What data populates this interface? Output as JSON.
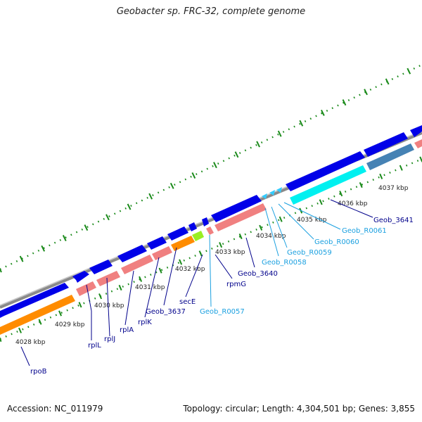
{
  "title": "Geobacter sp. FRC-32, complete genome",
  "footer": {
    "accession": "Accession: NC_011979",
    "summary": "Topology: circular; Length: 4,304,501 bp; Genes: 3,855"
  },
  "colors": {
    "backbone": "#8a8a8a",
    "forward_cds": "#0000e8",
    "reverse_cds": "#f08080",
    "rrna": "#ff8c00",
    "trna": "#33ccff",
    "misc": "#4682b4",
    "cyan_feature": "#00f0f0",
    "lime_feature": "#99ee22",
    "tick": "#1a8a1a",
    "label_cds": "#00008b",
    "label_rna": "#1aa0e0"
  },
  "ticks": [
    "4028 kbp",
    "4029 kbp",
    "4030 kbp",
    "4031 kbp",
    "4032 kbp",
    "4033 kbp",
    "4034 kbp",
    "4035 kbp",
    "4036 kbp",
    "4037 kbp"
  ],
  "labels": [
    {
      "text": "rpoB",
      "kind": "cds"
    },
    {
      "text": "rplL",
      "kind": "cds"
    },
    {
      "text": "rplJ",
      "kind": "cds"
    },
    {
      "text": "rplA",
      "kind": "cds"
    },
    {
      "text": "rplK",
      "kind": "cds"
    },
    {
      "text": "Geob_3637",
      "kind": "cds"
    },
    {
      "text": "secE",
      "kind": "cds"
    },
    {
      "text": "Geob_R0057",
      "kind": "rna"
    },
    {
      "text": "rpmG",
      "kind": "cds"
    },
    {
      "text": "Geob_3640",
      "kind": "cds"
    },
    {
      "text": "Geob_R0058",
      "kind": "rna"
    },
    {
      "text": "Geob_R0059",
      "kind": "rna"
    },
    {
      "text": "Geob_R0060",
      "kind": "rna"
    },
    {
      "text": "Geob_R0061",
      "kind": "rna"
    },
    {
      "text": "Geob_3641",
      "kind": "cds"
    }
  ]
}
